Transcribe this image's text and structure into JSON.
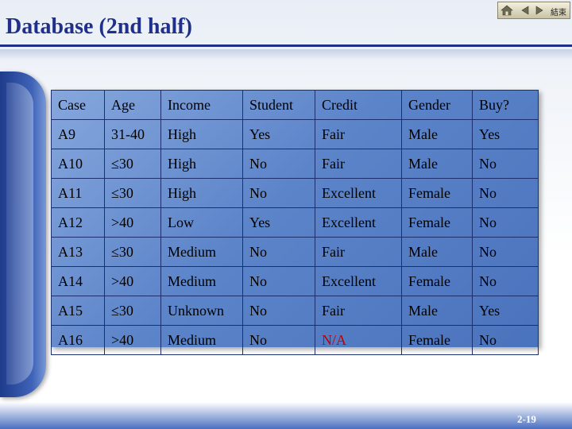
{
  "slide": {
    "title": "Database (2nd half)",
    "page_number": "2-19",
    "nav": {
      "home_icon": "home-icon",
      "back_icon": "triangle-left-icon",
      "forward_icon": "triangle-right-icon",
      "end_label": "結束"
    }
  },
  "table": {
    "headers": [
      "Case",
      "Age",
      "Income",
      "Student",
      "Credit",
      "Gender",
      "Buy?"
    ],
    "rows": [
      [
        "A9",
        "31-40",
        "High",
        "Yes",
        "Fair",
        "Male",
        "Yes"
      ],
      [
        "A10",
        "≤30",
        "High",
        "No",
        "Fair",
        "Male",
        "No"
      ],
      [
        "A11",
        "≤30",
        "High",
        "No",
        "Excellent",
        "Female",
        "No"
      ],
      [
        "A12",
        ">40",
        "Low",
        "Yes",
        "Excellent",
        "Female",
        "No"
      ],
      [
        "A13",
        "≤30",
        "Medium",
        "No",
        "Fair",
        "Male",
        "No"
      ],
      [
        "A14",
        ">40",
        "Medium",
        "No",
        "Excellent",
        "Female",
        "No"
      ],
      [
        "A15",
        "≤30",
        "Unknown",
        "No",
        "Fair",
        "Male",
        "Yes"
      ],
      [
        "A16",
        ">40",
        "Medium",
        "No",
        "N/A",
        "Female",
        "No"
      ]
    ],
    "highlight_color": "#c00000"
  },
  "colors": {
    "title": "#1f2f8a",
    "table_fill": "#5c84c9",
    "table_border": "#1e2f6e"
  }
}
